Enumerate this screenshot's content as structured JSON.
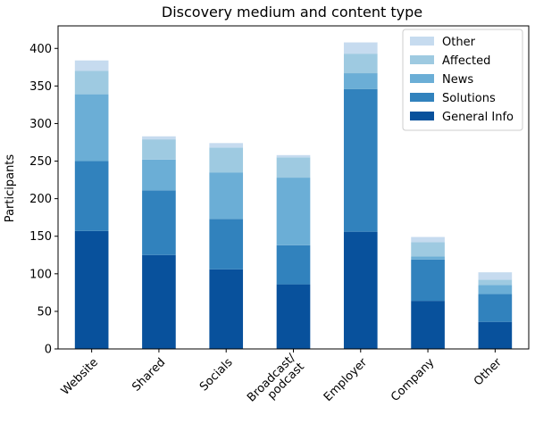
{
  "chart_data": {
    "type": "bar",
    "stacked": true,
    "title": "Discovery medium and content type",
    "xlabel": "",
    "ylabel": "Participants",
    "ylim": [
      0,
      430
    ],
    "yticks": [
      0,
      50,
      100,
      150,
      200,
      250,
      300,
      350,
      400
    ],
    "grid": false,
    "legend_position": "top-right",
    "categories": [
      "Website",
      "Shared",
      "Socials",
      "Broadcast/\npodcast",
      "Employer",
      "Company",
      "Other"
    ],
    "series": [
      {
        "name": "General Info",
        "color": "#08519c",
        "values": [
          157,
          125,
          106,
          86,
          156,
          64,
          36
        ]
      },
      {
        "name": "Solutions",
        "color": "#3182bd",
        "values": [
          93,
          86,
          67,
          52,
          190,
          55,
          37
        ]
      },
      {
        "name": "News",
        "color": "#6baed6",
        "values": [
          89,
          41,
          62,
          90,
          21,
          4,
          12
        ]
      },
      {
        "name": "Affected",
        "color": "#9ecae1",
        "values": [
          31,
          27,
          33,
          27,
          26,
          19,
          7
        ]
      },
      {
        "name": "Other",
        "color": "#c6dbef",
        "values": [
          14,
          4,
          6,
          3,
          15,
          7,
          10
        ]
      }
    ]
  }
}
